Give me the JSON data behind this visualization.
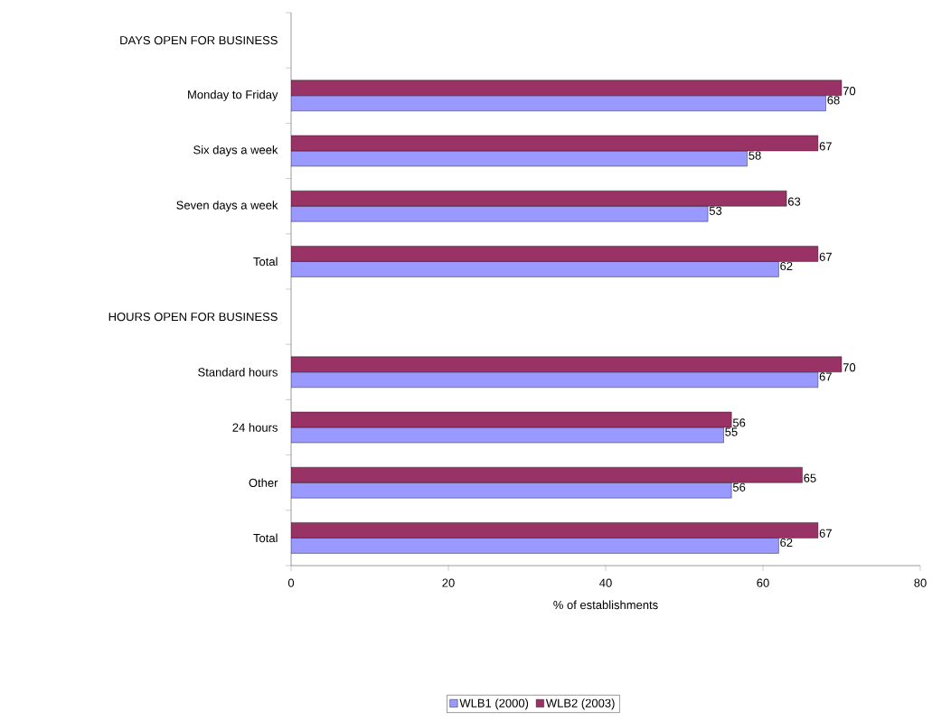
{
  "chart_data": {
    "type": "bar",
    "orientation": "horizontal",
    "xlabel": "% of establishments",
    "categories": [
      "DAYS OPEN FOR BUSINESS",
      "Monday to Friday",
      "Six days a week",
      "Seven days a week",
      "Total",
      "HOURS OPEN FOR BUSINESS",
      "Standard hours",
      "24 hours",
      "Other",
      "Total"
    ],
    "series": [
      {
        "name": "WLB1 (2000)",
        "color": "#9999ff",
        "values": [
          null,
          68,
          58,
          53,
          62,
          null,
          67,
          55,
          56,
          62
        ]
      },
      {
        "name": "WLB2 (2003)",
        "color": "#993366",
        "values": [
          null,
          70,
          67,
          63,
          67,
          null,
          70,
          56,
          65,
          67
        ]
      }
    ],
    "xlim": [
      0,
      80
    ],
    "xticks": [
      0,
      20,
      40,
      60,
      80
    ],
    "data_labels": true,
    "legend": "bottom",
    "grid": false
  }
}
